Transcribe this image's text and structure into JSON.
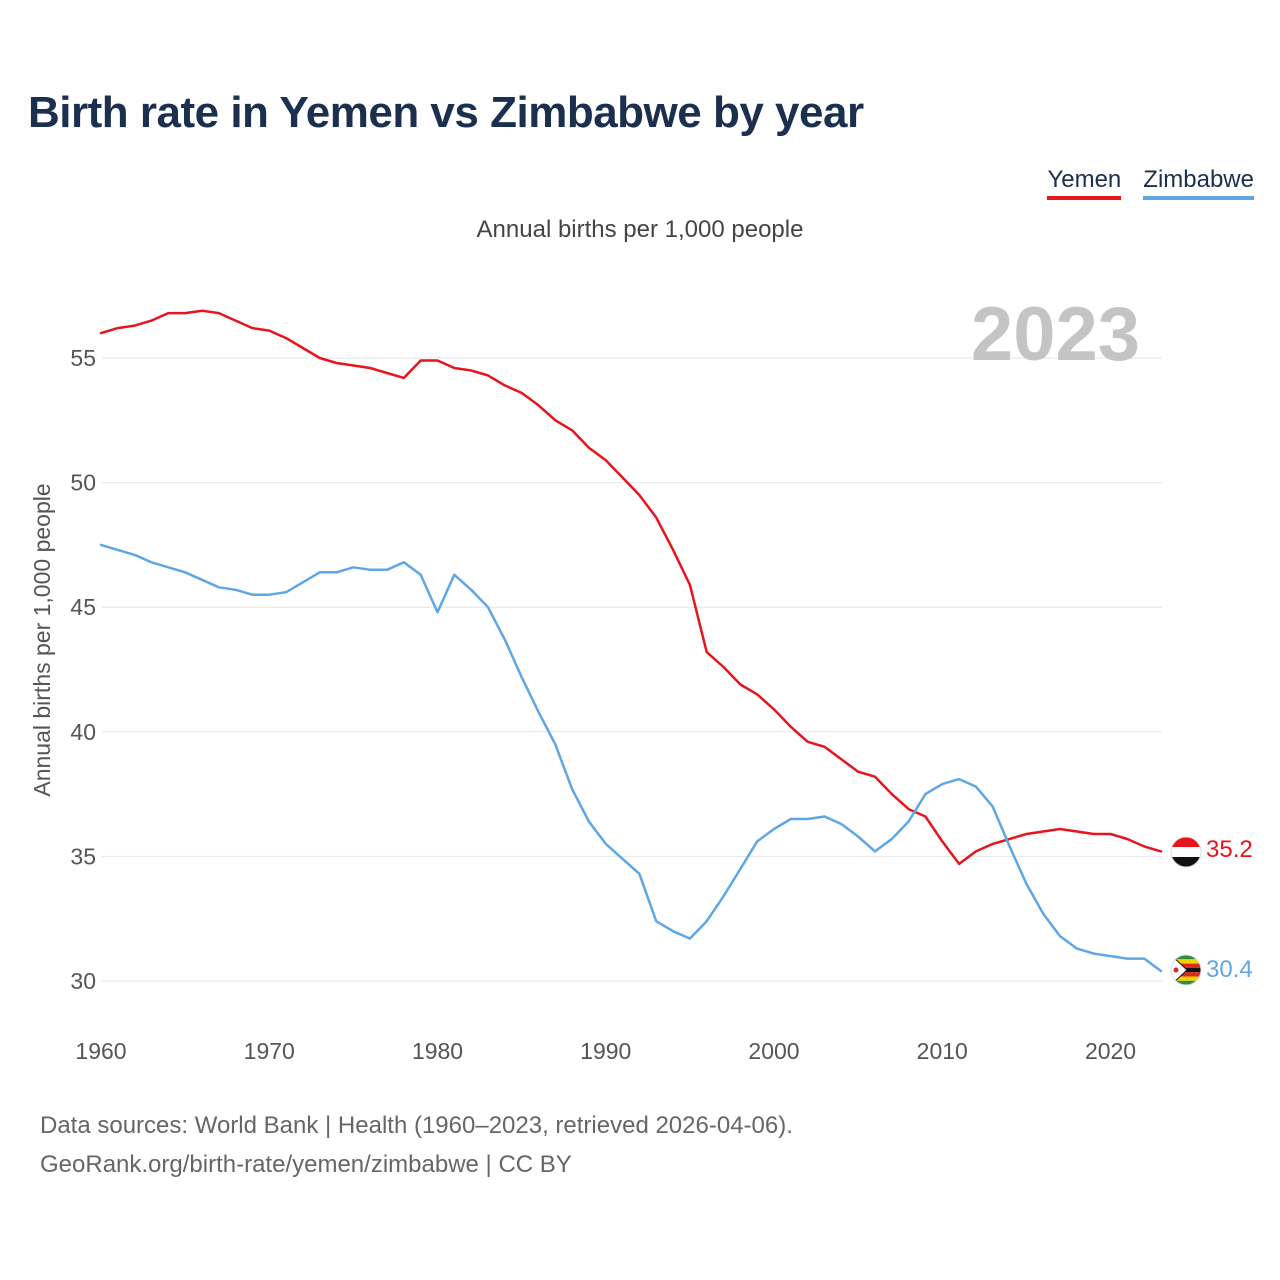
{
  "title": "Birth rate in Yemen vs Zimbabwe by year",
  "legend": [
    {
      "name": "Yemen",
      "color": "#e8141b"
    },
    {
      "name": "Zimbabwe",
      "color": "#5fa6e4"
    }
  ],
  "subtitle": "Annual births per 1,000 people",
  "year_watermark": "2023",
  "footer": {
    "line1": "Data sources: World Bank | Health (1960–2023, retrieved 2026-04-06).",
    "line2": "GeoRank.org/birth-rate/yemen/zimbabwe | CC BY"
  },
  "chart_data": {
    "type": "line",
    "title": "Birth rate in Yemen vs Zimbabwe by year",
    "ylabel": "Annual births per 1,000 people",
    "xlabel": "",
    "xlim": [
      1960,
      2023
    ],
    "ylim": [
      28.5,
      58
    ],
    "xticks": [
      1960,
      1970,
      1980,
      1990,
      2000,
      2010,
      2020
    ],
    "yticks": [
      30,
      35,
      40,
      45,
      50,
      55
    ],
    "grid": true,
    "x": [
      1960,
      1961,
      1962,
      1963,
      1964,
      1965,
      1966,
      1967,
      1968,
      1969,
      1970,
      1971,
      1972,
      1973,
      1974,
      1975,
      1976,
      1977,
      1978,
      1979,
      1980,
      1981,
      1982,
      1983,
      1984,
      1985,
      1986,
      1987,
      1988,
      1989,
      1990,
      1991,
      1992,
      1993,
      1994,
      1995,
      1996,
      1997,
      1998,
      1999,
      2000,
      2001,
      2002,
      2003,
      2004,
      2005,
      2006,
      2007,
      2008,
      2009,
      2010,
      2011,
      2012,
      2013,
      2014,
      2015,
      2016,
      2017,
      2018,
      2019,
      2020,
      2021,
      2022,
      2023
    ],
    "series": [
      {
        "name": "Yemen",
        "color": "#e8141b",
        "end_label": "35.2",
        "values": [
          56.0,
          56.2,
          56.3,
          56.5,
          56.8,
          56.8,
          56.9,
          56.8,
          56.5,
          56.2,
          56.1,
          55.8,
          55.4,
          55.0,
          54.8,
          54.7,
          54.6,
          54.4,
          54.2,
          54.9,
          54.9,
          54.6,
          54.5,
          54.3,
          53.9,
          53.6,
          53.1,
          52.5,
          52.1,
          51.4,
          50.9,
          50.2,
          49.5,
          48.6,
          47.3,
          45.9,
          43.2,
          42.6,
          41.9,
          41.5,
          40.9,
          40.2,
          39.6,
          39.4,
          38.9,
          38.4,
          38.2,
          37.5,
          36.9,
          36.6,
          35.6,
          34.7,
          35.2,
          35.5,
          35.7,
          35.9,
          36.0,
          36.1,
          36.0,
          35.9,
          35.9,
          35.7,
          35.4,
          35.2
        ]
      },
      {
        "name": "Zimbabwe",
        "color": "#5fa6e4",
        "end_label": "30.4",
        "values": [
          47.5,
          47.3,
          47.1,
          46.8,
          46.6,
          46.4,
          46.1,
          45.8,
          45.7,
          45.5,
          45.5,
          45.6,
          46.0,
          46.4,
          46.4,
          46.6,
          46.5,
          46.5,
          46.8,
          46.3,
          44.8,
          46.3,
          45.7,
          45.0,
          43.7,
          42.2,
          40.8,
          39.5,
          37.7,
          36.4,
          35.5,
          34.9,
          34.3,
          32.4,
          32.0,
          31.7,
          32.4,
          33.4,
          34.5,
          35.6,
          36.1,
          36.5,
          36.5,
          36.6,
          36.3,
          35.8,
          35.2,
          35.7,
          36.4,
          37.5,
          37.9,
          38.1,
          37.8,
          37.0,
          35.4,
          33.9,
          32.7,
          31.8,
          31.3,
          31.1,
          31.0,
          30.9,
          30.9,
          30.4
        ]
      }
    ]
  }
}
